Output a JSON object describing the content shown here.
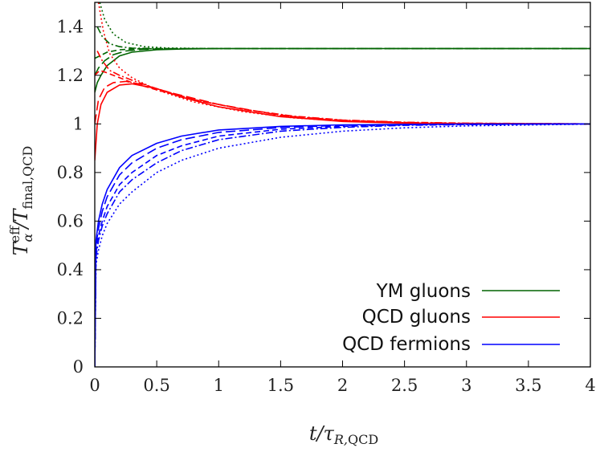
{
  "chart_data": {
    "type": "line",
    "title": "",
    "xlabel": "t/τ_R,QCD",
    "ylabel": "T_α^eff/T_final,QCD",
    "xlim": [
      0,
      4
    ],
    "ylim": [
      0,
      1.5
    ],
    "xticks": [
      "0",
      "0.5",
      "1",
      "1.5",
      "2",
      "2.5",
      "3",
      "3.5",
      "4"
    ],
    "yticks": [
      "0",
      "0.2",
      "0.4",
      "0.6",
      "0.8",
      "1",
      "1.2",
      "1.4"
    ],
    "legend_position": "bottom-right",
    "legend": [
      {
        "name": "YM gluons",
        "color": "#006400"
      },
      {
        "name": "QCD gluons",
        "color": "#ff0000"
      },
      {
        "name": "QCD fermions",
        "color": "#0000ff"
      }
    ],
    "series": [
      {
        "group": "YM gluons",
        "color": "#006400",
        "dash": "solid",
        "x": [
          0,
          0.02,
          0.05,
          0.1,
          0.2,
          0.3,
          0.5,
          0.7,
          1,
          2,
          4
        ],
        "y": [
          1.13,
          1.17,
          1.2,
          1.24,
          1.28,
          1.295,
          1.305,
          1.308,
          1.31,
          1.31,
          1.31
        ]
      },
      {
        "group": "YM gluons",
        "color": "#006400",
        "dash": "long-dash",
        "x": [
          0,
          0.03,
          0.08,
          0.15,
          0.25,
          0.4,
          0.6,
          1,
          2,
          4
        ],
        "y": [
          1.2,
          1.23,
          1.26,
          1.285,
          1.3,
          1.307,
          1.309,
          1.31,
          1.31,
          1.31
        ]
      },
      {
        "group": "YM gluons",
        "color": "#006400",
        "dash": "dash",
        "x": [
          0,
          0.04,
          0.1,
          0.2,
          0.3,
          0.5,
          1,
          2,
          4
        ],
        "y": [
          1.27,
          1.28,
          1.295,
          1.305,
          1.308,
          1.31,
          1.31,
          1.31,
          1.31
        ]
      },
      {
        "group": "YM gluons",
        "color": "#006400",
        "dash": "dash-dot",
        "x": [
          0.02,
          0.06,
          0.12,
          0.2,
          0.3,
          0.5,
          1,
          2,
          4
        ],
        "y": [
          1.4,
          1.36,
          1.33,
          1.318,
          1.312,
          1.31,
          1.31,
          1.31,
          1.31
        ]
      },
      {
        "group": "YM gluons",
        "color": "#006400",
        "dash": "dotted",
        "x": [
          0.04,
          0.08,
          0.15,
          0.25,
          0.4,
          0.6,
          1,
          2,
          4
        ],
        "y": [
          1.5,
          1.43,
          1.37,
          1.335,
          1.318,
          1.312,
          1.31,
          1.31,
          1.31
        ]
      },
      {
        "group": "QCD gluons",
        "color": "#ff0000",
        "dash": "solid",
        "x": [
          0,
          0.02,
          0.05,
          0.1,
          0.2,
          0.3,
          0.5,
          0.7,
          1,
          1.5,
          2,
          2.5,
          3,
          4
        ],
        "y": [
          0.85,
          1.0,
          1.08,
          1.13,
          1.16,
          1.165,
          1.145,
          1.11,
          1.07,
          1.03,
          1.01,
          1.003,
          1.001,
          1.0
        ]
      },
      {
        "group": "QCD gluons",
        "color": "#ff0000",
        "dash": "long-dash",
        "x": [
          0,
          0.03,
          0.08,
          0.15,
          0.25,
          0.4,
          0.6,
          1,
          1.5,
          2,
          2.5,
          3,
          4
        ],
        "y": [
          1.0,
          1.1,
          1.15,
          1.17,
          1.175,
          1.16,
          1.13,
          1.08,
          1.035,
          1.012,
          1.004,
          1.001,
          1.0
        ]
      },
      {
        "group": "QCD gluons",
        "color": "#ff0000",
        "dash": "dash",
        "x": [
          0,
          0.04,
          0.1,
          0.2,
          0.3,
          0.5,
          0.8,
          1.2,
          1.6,
          2,
          2.5,
          3,
          4
        ],
        "y": [
          1.2,
          1.22,
          1.21,
          1.19,
          1.17,
          1.14,
          1.1,
          1.06,
          1.03,
          1.015,
          1.006,
          1.002,
          1.0
        ]
      },
      {
        "group": "QCD gluons",
        "color": "#ff0000",
        "dash": "dash-dot",
        "x": [
          0.02,
          0.06,
          0.12,
          0.2,
          0.3,
          0.5,
          0.8,
          1.2,
          1.6,
          2,
          2.5,
          3,
          4
        ],
        "y": [
          1.3,
          1.26,
          1.22,
          1.2,
          1.18,
          1.145,
          1.1,
          1.06,
          1.032,
          1.016,
          1.007,
          1.003,
          1.0
        ]
      },
      {
        "group": "QCD gluons",
        "color": "#ff0000",
        "dash": "dotted",
        "x": [
          0.03,
          0.07,
          0.12,
          0.2,
          0.3,
          0.5,
          0.8,
          1.2,
          1.6,
          2,
          2.5,
          3,
          4
        ],
        "y": [
          1.5,
          1.38,
          1.29,
          1.23,
          1.19,
          1.14,
          1.09,
          1.05,
          1.025,
          1.012,
          1.005,
          1.002,
          1.0
        ]
      },
      {
        "group": "QCD fermions",
        "color": "#0000ff",
        "dash": "solid",
        "x": [
          0,
          0.01,
          0.03,
          0.06,
          0.1,
          0.2,
          0.3,
          0.5,
          0.7,
          1,
          1.5,
          2,
          2.5,
          3,
          4
        ],
        "y": [
          0.0,
          0.52,
          0.6,
          0.67,
          0.73,
          0.82,
          0.87,
          0.92,
          0.95,
          0.975,
          0.99,
          0.996,
          0.998,
          0.999,
          1.0
        ]
      },
      {
        "group": "QCD fermions",
        "color": "#0000ff",
        "dash": "long-dash",
        "x": [
          0,
          0.01,
          0.03,
          0.06,
          0.1,
          0.2,
          0.3,
          0.5,
          0.7,
          1,
          1.5,
          2,
          2.5,
          3,
          4
        ],
        "y": [
          0.0,
          0.5,
          0.57,
          0.64,
          0.7,
          0.79,
          0.84,
          0.9,
          0.935,
          0.965,
          0.985,
          0.994,
          0.997,
          0.999,
          1.0
        ]
      },
      {
        "group": "QCD fermions",
        "color": "#0000ff",
        "dash": "dash",
        "x": [
          0,
          0.01,
          0.03,
          0.06,
          0.1,
          0.2,
          0.3,
          0.5,
          0.7,
          1,
          1.5,
          2,
          2.5,
          3,
          4
        ],
        "y": [
          0.0,
          0.47,
          0.54,
          0.6,
          0.66,
          0.75,
          0.8,
          0.87,
          0.91,
          0.95,
          0.978,
          0.99,
          0.996,
          0.998,
          1.0
        ]
      },
      {
        "group": "QCD fermions",
        "color": "#0000ff",
        "dash": "dash-dot",
        "x": [
          0,
          0.01,
          0.03,
          0.06,
          0.1,
          0.2,
          0.3,
          0.5,
          0.7,
          1,
          1.5,
          2,
          2.5,
          3,
          4
        ],
        "y": [
          0.0,
          0.45,
          0.52,
          0.58,
          0.63,
          0.72,
          0.77,
          0.84,
          0.89,
          0.935,
          0.97,
          0.986,
          0.994,
          0.997,
          1.0
        ]
      },
      {
        "group": "QCD fermions",
        "color": "#0000ff",
        "dash": "dotted",
        "x": [
          0,
          0.01,
          0.03,
          0.06,
          0.1,
          0.2,
          0.3,
          0.5,
          0.7,
          1,
          1.5,
          2,
          2.5,
          3,
          4
        ],
        "y": [
          0.0,
          0.42,
          0.48,
          0.54,
          0.59,
          0.67,
          0.72,
          0.8,
          0.85,
          0.9,
          0.945,
          0.97,
          0.984,
          0.992,
          0.999
        ]
      }
    ]
  }
}
